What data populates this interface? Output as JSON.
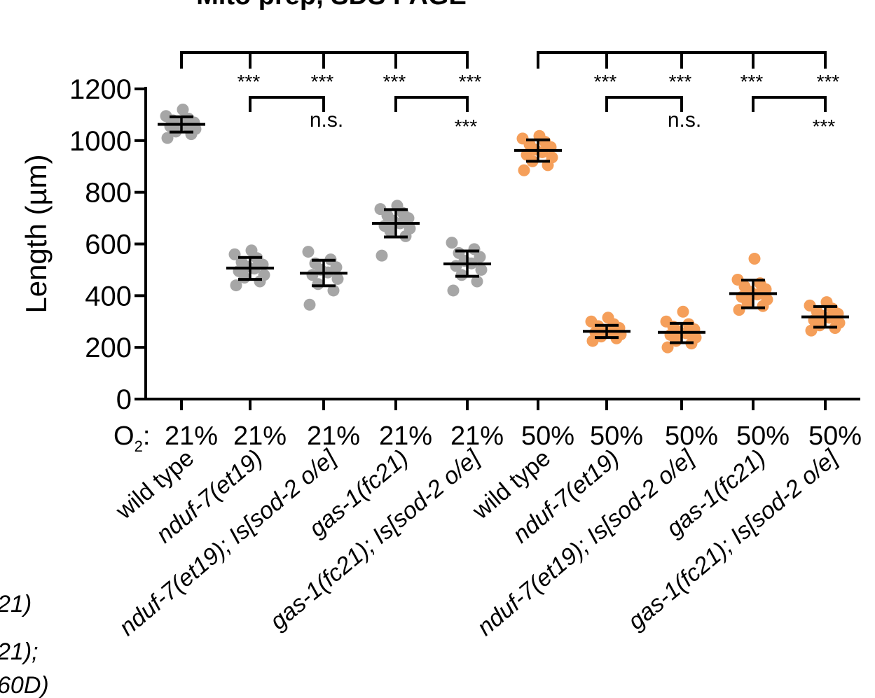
{
  "title": "Mito prep, SDS PAGE",
  "side_labels": [
    "21)",
    "21);",
    "60D)"
  ],
  "chart_data": {
    "type": "scatter",
    "title": "Mito prep, SDS PAGE",
    "ylabel": "Length (µm)",
    "xlabel": "",
    "ylim": [
      0,
      1200
    ],
    "yticks": [
      0,
      200,
      400,
      600,
      800,
      1000,
      1200
    ],
    "grid": false,
    "o2_prefix": "O",
    "o2_sub": "2",
    "o2_suffix": ":",
    "colors": {
      "21%": "#a6a6a6",
      "50%": "#f59f5a",
      "summary": "#000000"
    },
    "groups": [
      {
        "label": "wild type",
        "o2": "21%",
        "mean": 1063,
        "sd_low": 1033,
        "sd_high": 1092,
        "points": [
          1010,
          1025,
          1035,
          1045,
          1055,
          1060,
          1065,
          1070,
          1078,
          1085,
          1095,
          1120
        ]
      },
      {
        "label": "nduf-7(et19)",
        "o2": "21%",
        "mean": 507,
        "sd_low": 463,
        "sd_high": 548,
        "points": [
          440,
          455,
          470,
          480,
          495,
          505,
          512,
          520,
          530,
          545,
          560,
          575
        ]
      },
      {
        "label": "nduf-7(et19); Is[sod-2 o/e]",
        "o2": "21%",
        "mean": 487,
        "sd_low": 438,
        "sd_high": 537,
        "points": [
          365,
          420,
          445,
          465,
          480,
          490,
          500,
          510,
          525,
          540,
          570
        ]
      },
      {
        "label": "gas-1(fc21)",
        "o2": "21%",
        "mean": 680,
        "sd_low": 627,
        "sd_high": 733,
        "points": [
          555,
          630,
          650,
          660,
          670,
          680,
          690,
          700,
          710,
          720,
          735,
          748
        ]
      },
      {
        "label": "gas-1(fc21); Is[sod-2 o/e]",
        "o2": "21%",
        "mean": 523,
        "sd_low": 475,
        "sd_high": 573,
        "points": [
          420,
          455,
          480,
          500,
          515,
          525,
          535,
          550,
          565,
          580,
          605
        ]
      },
      {
        "label": "wild type",
        "o2": "50%",
        "mean": 962,
        "sd_low": 920,
        "sd_high": 1003,
        "points": [
          885,
          905,
          920,
          935,
          945,
          955,
          965,
          975,
          985,
          995,
          1008,
          1018
        ]
      },
      {
        "label": "nduf-7(et19)",
        "o2": "50%",
        "mean": 262,
        "sd_low": 238,
        "sd_high": 285,
        "points": [
          225,
          235,
          242,
          250,
          258,
          262,
          268,
          275,
          282,
          290,
          300,
          315
        ]
      },
      {
        "label": "nduf-7(et19); Is[sod-2 o/e]",
        "o2": "50%",
        "mean": 258,
        "sd_low": 218,
        "sd_high": 293,
        "points": [
          200,
          215,
          225,
          238,
          248,
          255,
          262,
          270,
          280,
          290,
          300,
          338
        ]
      },
      {
        "label": "gas-1(fc21)",
        "o2": "50%",
        "mean": 408,
        "sd_low": 353,
        "sd_high": 460,
        "points": [
          345,
          360,
          375,
          385,
          395,
          405,
          415,
          425,
          435,
          448,
          462,
          543
        ]
      },
      {
        "label": "gas-1(fc21); Is[sod-2 o/e]",
        "o2": "50%",
        "mean": 318,
        "sd_low": 278,
        "sd_high": 358,
        "points": [
          265,
          275,
          285,
          295,
          305,
          315,
          322,
          330,
          340,
          350,
          362,
          375
        ]
      }
    ],
    "comparisons": [
      {
        "from": 0,
        "to": [
          1,
          2,
          3,
          4
        ],
        "marks": [
          "***",
          "***",
          "***",
          "***"
        ]
      },
      {
        "from": 5,
        "to": [
          6,
          7,
          8,
          9
        ],
        "marks": [
          "***",
          "***",
          "***",
          "***"
        ]
      },
      {
        "from": 1,
        "to": 2,
        "mark": "n.s."
      },
      {
        "from": 3,
        "to": 4,
        "mark": "***"
      },
      {
        "from": 6,
        "to": 7,
        "mark": "n.s."
      },
      {
        "from": 8,
        "to": 9,
        "mark": "***"
      }
    ]
  }
}
